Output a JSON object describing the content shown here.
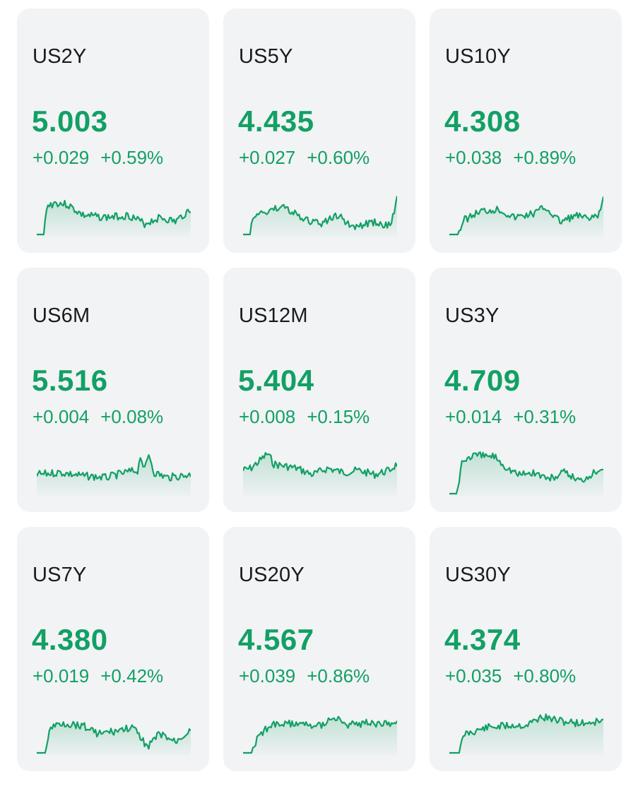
{
  "colors": {
    "card_bg": "#f2f3f5",
    "positive": "#12a065",
    "ticker_text": "#1b1b1b"
  },
  "quotes": [
    {
      "ticker": "US2Y",
      "price": "5.003",
      "change": "+0.029",
      "change_pct": "+0.59%",
      "direction": "up"
    },
    {
      "ticker": "US5Y",
      "price": "4.435",
      "change": "+0.027",
      "change_pct": "+0.60%",
      "direction": "up"
    },
    {
      "ticker": "US10Y",
      "price": "4.308",
      "change": "+0.038",
      "change_pct": "+0.89%",
      "direction": "up"
    },
    {
      "ticker": "US6M",
      "price": "5.516",
      "change": "+0.004",
      "change_pct": "+0.08%",
      "direction": "up"
    },
    {
      "ticker": "US12M",
      "price": "5.404",
      "change": "+0.008",
      "change_pct": "+0.15%",
      "direction": "up"
    },
    {
      "ticker": "US3Y",
      "price": "4.709",
      "change": "+0.014",
      "change_pct": "+0.31%",
      "direction": "up"
    },
    {
      "ticker": "US7Y",
      "price": "4.380",
      "change": "+0.019",
      "change_pct": "+0.42%",
      "direction": "up"
    },
    {
      "ticker": "US20Y",
      "price": "4.567",
      "change": "+0.039",
      "change_pct": "+0.86%",
      "direction": "up"
    },
    {
      "ticker": "US30Y",
      "price": "4.374",
      "change": "+0.035",
      "change_pct": "+0.80%",
      "direction": "up"
    }
  ]
}
